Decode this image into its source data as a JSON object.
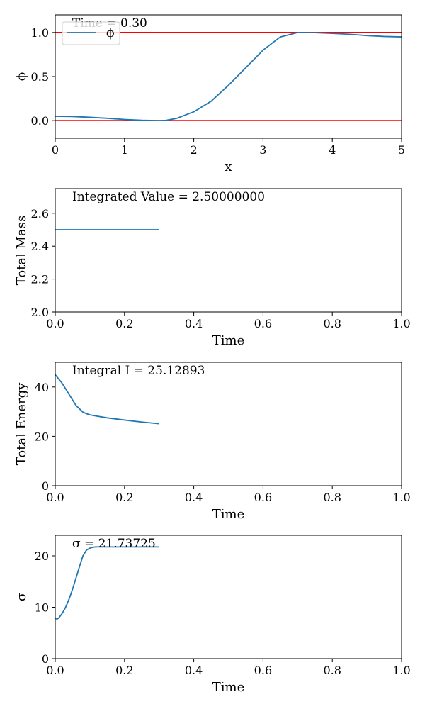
{
  "chart_data": [
    {
      "type": "line",
      "title": "",
      "annotation": "Time = 0.30",
      "xlabel": "x",
      "ylabel": "ϕ",
      "xlim": [
        0,
        5
      ],
      "ylim": [
        -0.2,
        1.2
      ],
      "xticks": [
        0,
        1,
        2,
        3,
        4,
        5
      ],
      "yticks": [
        0.0,
        0.5,
        1.0
      ],
      "xtick_labels": [
        "0",
        "1",
        "2",
        "3",
        "4",
        "5"
      ],
      "ytick_labels": [
        "0.0",
        "0.5",
        "1.0"
      ],
      "legend": {
        "placement": "top-left",
        "entries": [
          "ϕ"
        ]
      },
      "reference_lines": [
        {
          "y": 1.0,
          "color": "#ff0000"
        },
        {
          "y": 0.0,
          "color": "#ff0000"
        }
      ],
      "series": [
        {
          "name": "ϕ",
          "color": "#1f77b4",
          "x": [
            0,
            0.25,
            0.5,
            0.75,
            1.0,
            1.25,
            1.5,
            1.6,
            1.75,
            2.0,
            2.25,
            2.5,
            2.75,
            3.0,
            3.25,
            3.5,
            3.75,
            4.0,
            4.25,
            4.5,
            4.75,
            5.0
          ],
          "y": [
            0.05,
            0.047,
            0.038,
            0.027,
            0.013,
            0.004,
            0.0,
            0.003,
            0.025,
            0.1,
            0.22,
            0.4,
            0.6,
            0.8,
            0.95,
            1.0,
            0.998,
            0.99,
            0.98,
            0.965,
            0.955,
            0.95
          ]
        }
      ]
    },
    {
      "type": "line",
      "title": "",
      "annotation": "Integrated Value = 2.50000000",
      "xlabel": "Time",
      "ylabel": "Total Mass",
      "xlim": [
        0,
        1
      ],
      "ylim": [
        2.0,
        2.75
      ],
      "xticks": [
        0.0,
        0.2,
        0.4,
        0.6,
        0.8,
        1.0
      ],
      "yticks": [
        2.0,
        2.2,
        2.4,
        2.6
      ],
      "xtick_labels": [
        "0.0",
        "0.2",
        "0.4",
        "0.6",
        "0.8",
        "1.0"
      ],
      "ytick_labels": [
        "2.0",
        "2.2",
        "2.4",
        "2.6"
      ],
      "series": [
        {
          "color": "#1f77b4",
          "x": [
            0.0,
            0.3
          ],
          "y": [
            2.5,
            2.5
          ]
        }
      ]
    },
    {
      "type": "line",
      "title": "",
      "annotation": "Integral I = 25.12893",
      "xlabel": "Time",
      "ylabel": "Total Energy",
      "xlim": [
        0,
        1
      ],
      "ylim": [
        0,
        50
      ],
      "xticks": [
        0.0,
        0.2,
        0.4,
        0.6,
        0.8,
        1.0
      ],
      "yticks": [
        0,
        20,
        40
      ],
      "xtick_labels": [
        "0.0",
        "0.2",
        "0.4",
        "0.6",
        "0.8",
        "1.0"
      ],
      "ytick_labels": [
        "0",
        "20",
        "40"
      ],
      "series": [
        {
          "color": "#1f77b4",
          "x": [
            0.0,
            0.02,
            0.04,
            0.06,
            0.08,
            0.09,
            0.1,
            0.12,
            0.15,
            0.2,
            0.25,
            0.3
          ],
          "y": [
            45.0,
            41.5,
            37.0,
            32.5,
            29.8,
            29.2,
            28.7,
            28.2,
            27.5,
            26.6,
            25.8,
            25.1
          ]
        }
      ]
    },
    {
      "type": "line",
      "title": "",
      "annotation": "σ = 21.73725",
      "xlabel": "Time",
      "ylabel": "σ",
      "xlim": [
        0,
        1
      ],
      "ylim": [
        0,
        24
      ],
      "xticks": [
        0.0,
        0.2,
        0.4,
        0.6,
        0.8,
        1.0
      ],
      "yticks": [
        0,
        10,
        20
      ],
      "xtick_labels": [
        "0.0",
        "0.2",
        "0.4",
        "0.6",
        "0.8",
        "1.0"
      ],
      "ytick_labels": [
        "0",
        "10",
        "20"
      ],
      "series": [
        {
          "color": "#1f77b4",
          "x": [
            0.0,
            0.005,
            0.01,
            0.02,
            0.03,
            0.04,
            0.05,
            0.06,
            0.07,
            0.08,
            0.09,
            0.1,
            0.11,
            0.12,
            0.13,
            0.15,
            0.2,
            0.25,
            0.3
          ],
          "y": [
            7.9,
            7.7,
            7.9,
            8.8,
            10.0,
            11.6,
            13.5,
            15.7,
            17.9,
            20.0,
            21.1,
            21.5,
            21.7,
            21.75,
            21.74,
            21.74,
            21.74,
            21.74,
            21.74
          ]
        }
      ]
    }
  ]
}
